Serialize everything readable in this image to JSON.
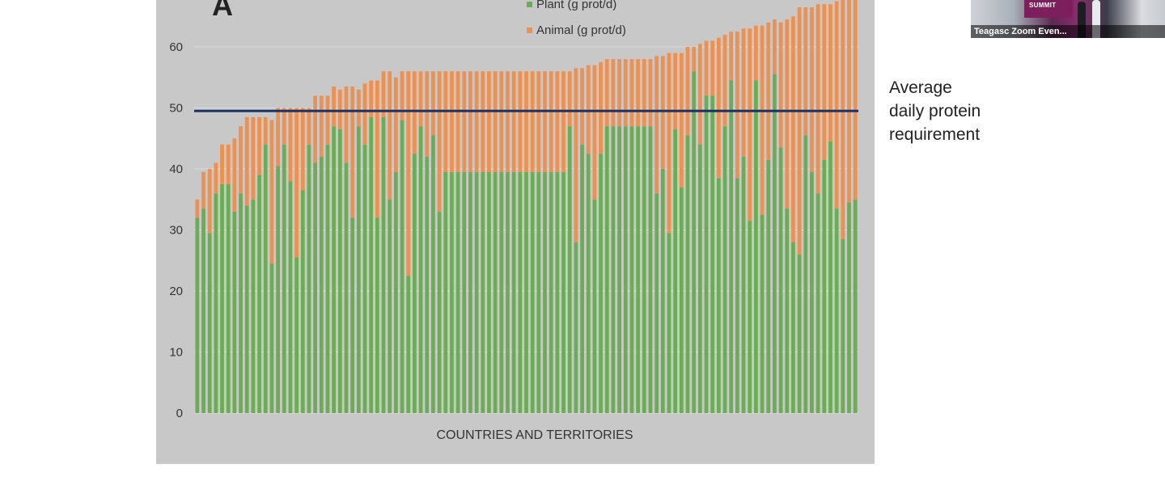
{
  "figure": {
    "panel_letter": "A",
    "annotation_lines": [
      "Average",
      "daily protein",
      "requirement"
    ]
  },
  "video_thumbnail": {
    "caption": "Teagasc Zoom Even...",
    "screen_text": "SUMMIT"
  },
  "chart_data": {
    "type": "bar",
    "stacked": true,
    "xlabel": "COUNTRIES AND TERRITORIES",
    "ylabel": "",
    "ylim": [
      0,
      65
    ],
    "yticks": [
      0,
      10,
      20,
      30,
      40,
      50,
      60
    ],
    "grid": true,
    "legend_position": "top",
    "reference_line": {
      "y": 49.5,
      "label": "Average daily protein requirement",
      "color": "#1f3264"
    },
    "series": [
      {
        "name": "Plant (g prot/d)",
        "color": "#6aad55",
        "values": [
          32,
          33.5,
          29.5,
          36,
          37.5,
          37.5,
          33,
          36,
          34,
          35,
          39,
          44,
          24.5,
          40.5,
          44,
          38,
          25.5,
          36.5,
          44,
          41,
          42,
          44,
          47,
          46.5,
          41,
          32,
          47,
          44,
          48.5,
          32,
          48.5,
          35,
          39.5,
          48,
          22.5,
          42.5,
          47,
          42,
          45.5,
          33,
          39.5,
          39.5,
          39.5,
          39.5,
          39.5,
          39.5,
          39.5,
          39.5,
          39.5,
          39.5,
          39.5,
          39.5,
          39.5,
          39.5,
          39.5,
          39.5,
          39.5,
          39.5,
          39.5,
          39.5,
          47,
          28,
          44,
          42.5,
          35,
          42.5,
          47,
          47,
          47,
          47,
          47,
          47,
          47,
          47,
          36,
          40,
          29.5,
          46.5,
          37,
          45.5,
          56,
          44,
          52,
          52,
          38.5,
          47,
          54.5,
          38.5,
          42,
          31.5,
          54.5,
          32.5,
          41.5,
          55.5,
          43.5,
          33.5,
          28,
          26,
          45.5,
          39.5,
          36,
          41.5,
          44.5,
          33.5,
          28.5,
          34.5,
          35
        ]
      },
      {
        "name": "Animal (g prot/d)",
        "color": "#ee9150",
        "values": [
          3,
          6,
          10.5,
          5,
          6.5,
          6.5,
          12,
          11,
          14.5,
          13.5,
          9.5,
          4.5,
          23.5,
          9.5,
          6,
          12,
          24.5,
          13.5,
          6,
          11,
          10,
          8,
          6.5,
          6.5,
          12.5,
          21.5,
          6,
          10,
          6,
          22.5,
          7.5,
          21,
          15.5,
          8,
          33.5,
          13.5,
          9,
          14,
          10.5,
          23,
          16.5,
          16.5,
          16.5,
          16.5,
          16.5,
          16.5,
          16.5,
          16.5,
          16.5,
          16.5,
          16.5,
          16.5,
          16.5,
          16.5,
          16.5,
          16.5,
          16.5,
          16.5,
          16.5,
          16.5,
          9,
          28.5,
          12.5,
          14.5,
          22,
          15,
          11,
          11,
          11,
          11,
          11,
          11,
          11,
          11,
          22.5,
          18.5,
          29.5,
          12.5,
          22,
          14.5,
          4,
          16.5,
          9,
          9,
          23,
          15,
          8,
          24,
          21,
          31.5,
          9,
          31,
          22.5,
          9,
          20.5,
          31,
          37,
          40.5,
          21,
          27,
          31,
          25.5,
          22.5,
          34,
          39.5,
          33.5,
          33.5
        ]
      }
    ]
  }
}
